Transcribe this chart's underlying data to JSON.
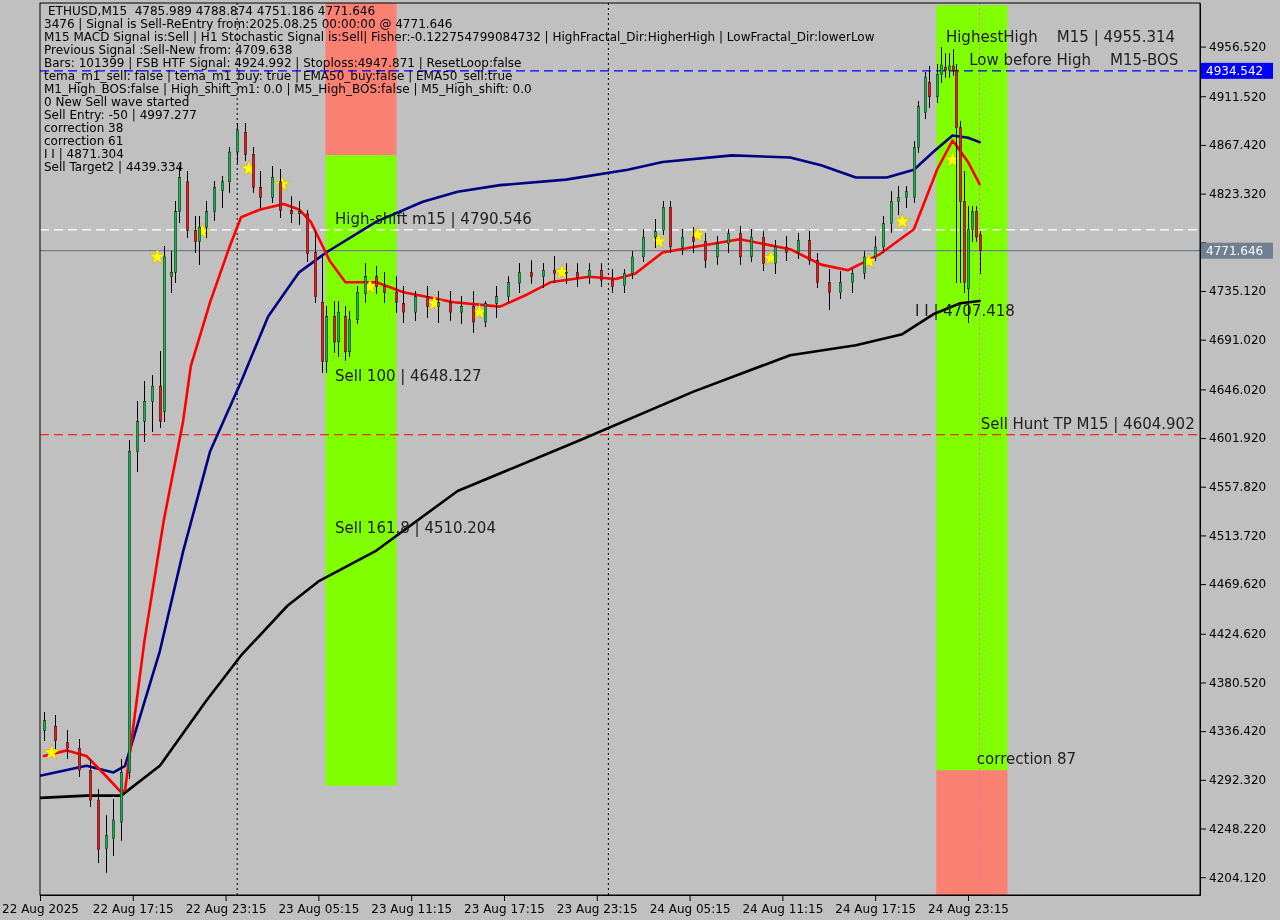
{
  "chart_data": {
    "type": "candlestick",
    "title": "ETHUSD,M15  4785.989 4788.874 4751.186 4771.646",
    "x": [
      "2025-08-22T11:30",
      "2025-08-22T12:15",
      "2025-08-22T13:00",
      "2025-08-22T13:45",
      "2025-08-22T14:30",
      "2025-08-22T15:00",
      "2025-08-22T15:30",
      "2025-08-22T16:00",
      "2025-08-22T16:30",
      "2025-08-22T17:00",
      "2025-08-22T17:30",
      "2025-08-22T18:00",
      "2025-08-22T18:30",
      "2025-08-22T19:00",
      "2025-08-22T19:15",
      "2025-08-22T19:45",
      "2025-08-22T20:00",
      "2025-08-22T20:15",
      "2025-08-22T20:45",
      "2025-08-22T21:15",
      "2025-08-22T21:30",
      "2025-08-22T22:00",
      "2025-08-22T22:30",
      "2025-08-22T23:00",
      "2025-08-22T23:30",
      "2025-08-23T00:00",
      "2025-08-23T00:30",
      "2025-08-23T01:00",
      "2025-08-23T01:30",
      "2025-08-23T02:15",
      "2025-08-23T02:45",
      "2025-08-23T03:30",
      "2025-08-23T04:00",
      "2025-08-23T04:30",
      "2025-08-23T05:00",
      "2025-08-23T05:30",
      "2025-08-23T05:45",
      "2025-08-23T06:15",
      "2025-08-23T06:30",
      "2025-08-23T07:00",
      "2025-08-23T07:15",
      "2025-08-23T07:45",
      "2025-08-23T08:15",
      "2025-08-23T09:00",
      "2025-08-23T09:30",
      "2025-08-23T10:15",
      "2025-08-23T10:45",
      "2025-08-23T11:30",
      "2025-08-23T12:15",
      "2025-08-23T13:00",
      "2025-08-23T13:45",
      "2025-08-23T14:30",
      "2025-08-23T15:15",
      "2025-08-23T16:00",
      "2025-08-23T16:45",
      "2025-08-23T17:30",
      "2025-08-23T18:15",
      "2025-08-23T19:00",
      "2025-08-23T19:45",
      "2025-08-23T20:30",
      "2025-08-23T21:15",
      "2025-08-23T22:00",
      "2025-08-23T22:45",
      "2025-08-23T23:30",
      "2025-08-24T00:15",
      "2025-08-24T01:00",
      "2025-08-24T01:30",
      "2025-08-24T02:15",
      "2025-08-24T03:00",
      "2025-08-24T03:30",
      "2025-08-24T04:00",
      "2025-08-24T04:45",
      "2025-08-24T05:30",
      "2025-08-24T06:15",
      "2025-08-24T07:00",
      "2025-08-24T07:45",
      "2025-08-24T08:30",
      "2025-08-24T09:15",
      "2025-08-24T10:00",
      "2025-08-24T10:45",
      "2025-08-24T11:30",
      "2025-08-24T12:15",
      "2025-08-24T13:00",
      "2025-08-24T13:30",
      "2025-08-24T14:15",
      "2025-08-24T15:00",
      "2025-08-24T15:45",
      "2025-08-24T16:30",
      "2025-08-24T17:15",
      "2025-08-24T17:45",
      "2025-08-24T18:15",
      "2025-08-24T18:45",
      "2025-08-24T19:15",
      "2025-08-24T19:45",
      "2025-08-24T20:00",
      "2025-08-24T20:30",
      "2025-08-24T20:45",
      "2025-08-24T21:15",
      "2025-08-24T21:30",
      "2025-08-24T21:45",
      "2025-08-24T22:00",
      "2025-08-24T22:15",
      "2025-08-24T22:30",
      "2025-08-24T22:45",
      "2025-08-24T23:00",
      "2025-08-24T23:15",
      "2025-08-24T23:30",
      "2025-08-24T23:45",
      "2025-08-25T00:00"
    ],
    "ohlc": [
      [
        4337,
        4353,
        4328,
        4346
      ],
      [
        4341,
        4350,
        4321,
        4328
      ],
      [
        4326,
        4337,
        4312,
        4321
      ],
      [
        4321,
        4328,
        4296,
        4301
      ],
      [
        4301,
        4310,
        4269,
        4274
      ],
      [
        4274,
        4283,
        4218,
        4229
      ],
      [
        4230,
        4260,
        4209,
        4242
      ],
      [
        4239,
        4274,
        4224,
        4256
      ],
      [
        4254,
        4310,
        4238,
        4299
      ],
      [
        4299,
        4599,
        4294,
        4590
      ],
      [
        4590,
        4635,
        4572,
        4617
      ],
      [
        4617,
        4653,
        4599,
        4635
      ],
      [
        4635,
        4658,
        4608,
        4649
      ],
      [
        4649,
        4680,
        4612,
        4617
      ],
      [
        4626,
        4775,
        4617,
        4766
      ],
      [
        4748,
        4770,
        4734,
        4752
      ],
      [
        4752,
        4816,
        4743,
        4807
      ],
      [
        4807,
        4847,
        4798,
        4838
      ],
      [
        4834,
        4843,
        4784,
        4790
      ],
      [
        4790,
        4802,
        4770,
        4780
      ],
      [
        4780,
        4802,
        4760,
        4793
      ],
      [
        4793,
        4816,
        4784,
        4807
      ],
      [
        4807,
        4834,
        4799,
        4829
      ],
      [
        4826,
        4838,
        4811,
        4834
      ],
      [
        4834,
        4865,
        4825,
        4861
      ],
      [
        4861,
        4886,
        4852,
        4881
      ],
      [
        4879,
        4886,
        4854,
        4859
      ],
      [
        4859,
        4865,
        4825,
        4829
      ],
      [
        4829,
        4843,
        4811,
        4820
      ],
      [
        4820,
        4847,
        4816,
        4838
      ],
      [
        4834,
        4845,
        4802,
        4808
      ],
      [
        4808,
        4820,
        4798,
        4805
      ],
      [
        4805,
        4816,
        4796,
        4807
      ],
      [
        4805,
        4808,
        4762,
        4769
      ],
      [
        4770,
        4789,
        4725,
        4730
      ],
      [
        4725,
        4766,
        4662,
        4671
      ],
      [
        4671,
        4721,
        4662,
        4712
      ],
      [
        4712,
        4725,
        4680,
        4689
      ],
      [
        4689,
        4725,
        4676,
        4716
      ],
      [
        4712,
        4721,
        4673,
        4680
      ],
      [
        4680,
        4716,
        4676,
        4709
      ],
      [
        4709,
        4739,
        4706,
        4734
      ],
      [
        4733,
        4760,
        4725,
        4748
      ],
      [
        4748,
        4757,
        4733,
        4739
      ],
      [
        4739,
        4751,
        4725,
        4734
      ],
      [
        4734,
        4748,
        4716,
        4725
      ],
      [
        4724,
        4739,
        4707,
        4716
      ],
      [
        4716,
        4734,
        4709,
        4730
      ],
      [
        4730,
        4739,
        4712,
        4721
      ],
      [
        4721,
        4734,
        4707,
        4725
      ],
      [
        4725,
        4734,
        4709,
        4716
      ],
      [
        4716,
        4730,
        4706,
        4721
      ],
      [
        4721,
        4734,
        4698,
        4707
      ],
      [
        4707,
        4725,
        4703,
        4724
      ],
      [
        4724,
        4739,
        4712,
        4730
      ],
      [
        4730,
        4748,
        4725,
        4743
      ],
      [
        4742,
        4760,
        4734,
        4752
      ],
      [
        4752,
        4762,
        4742,
        4748
      ],
      [
        4748,
        4760,
        4739,
        4754
      ],
      [
        4754,
        4766,
        4743,
        4751
      ],
      [
        4751,
        4760,
        4742,
        4752
      ],
      [
        4752,
        4760,
        4740,
        4747
      ],
      [
        4748,
        4760,
        4742,
        4754
      ],
      [
        4754,
        4760,
        4740,
        4745
      ],
      [
        4745,
        4754,
        4734,
        4739
      ],
      [
        4740,
        4754,
        4734,
        4751
      ],
      [
        4751,
        4770,
        4747,
        4766
      ],
      [
        4766,
        4790,
        4762,
        4784
      ],
      [
        4784,
        4799,
        4775,
        4789
      ],
      [
        4790,
        4816,
        4787,
        4811
      ],
      [
        4811,
        4816,
        4770,
        4775
      ],
      [
        4775,
        4790,
        4769,
        4784
      ],
      [
        4784,
        4792,
        4770,
        4780
      ],
      [
        4780,
        4787,
        4757,
        4763
      ],
      [
        4766,
        4784,
        4760,
        4778
      ],
      [
        4778,
        4790,
        4770,
        4787
      ],
      [
        4787,
        4793,
        4760,
        4766
      ],
      [
        4766,
        4790,
        4762,
        4784
      ],
      [
        4784,
        4789,
        4754,
        4760
      ],
      [
        4760,
        4780,
        4751,
        4775
      ],
      [
        4775,
        4784,
        4763,
        4770
      ],
      [
        4770,
        4787,
        4765,
        4781
      ],
      [
        4781,
        4789,
        4760,
        4763
      ],
      [
        4763,
        4769,
        4739,
        4743
      ],
      [
        4743,
        4754,
        4719,
        4734
      ],
      [
        4734,
        4752,
        4729,
        4743
      ],
      [
        4743,
        4754,
        4734,
        4751
      ],
      [
        4751,
        4770,
        4747,
        4766
      ],
      [
        4766,
        4784,
        4763,
        4775
      ],
      [
        4775,
        4802,
        4770,
        4796
      ],
      [
        4796,
        4825,
        4789,
        4816
      ],
      [
        4816,
        4829,
        4805,
        4820
      ],
      [
        4820,
        4829,
        4811,
        4825
      ],
      [
        4820,
        4870,
        4816,
        4865
      ],
      [
        4865,
        4906,
        4861,
        4902
      ],
      [
        4897,
        4933,
        4892,
        4929
      ],
      [
        4924,
        4938,
        4902,
        4911
      ],
      [
        4911,
        4940,
        4906,
        4931
      ],
      [
        4931,
        4955.314,
        4924,
        4940
      ],
      [
        4938,
        4950,
        4929,
        4935
      ],
      [
        4935,
        4950,
        4929,
        4939
      ],
      [
        4939,
        4953,
        4931,
        4935
      ],
      [
        4935,
        4940,
        4743,
        4883
      ],
      [
        4883,
        4888,
        4743,
        4816
      ],
      [
        4816,
        4843,
        4734,
        4743
      ],
      [
        4737,
        4811,
        4707.418,
        4791
      ],
      [
        4791,
        4811,
        4780,
        4807
      ],
      [
        4807,
        4811,
        4780,
        4784
      ],
      [
        4785.989,
        4788.874,
        4751.186,
        4771.646
      ]
    ],
    "xlim": [
      "2025-08-22T11:15",
      "2025-08-25T14:15"
    ],
    "xticks": [
      {
        "value": "2025-08-22T11:15",
        "label": "22 Aug 2025"
      },
      {
        "value": "2025-08-22T17:15",
        "label": "22 Aug 17:15"
      },
      {
        "value": "2025-08-22T23:15",
        "label": "22 Aug 23:15"
      },
      {
        "value": "2025-08-23T05:15",
        "label": "23 Aug 05:15"
      },
      {
        "value": "2025-08-23T11:15",
        "label": "23 Aug 11:15"
      },
      {
        "value": "2025-08-23T17:15",
        "label": "23 Aug 17:15"
      },
      {
        "value": "2025-08-23T23:15",
        "label": "23 Aug 23:15"
      },
      {
        "value": "2025-08-24T05:15",
        "label": "24 Aug 05:15"
      },
      {
        "value": "2025-08-24T11:15",
        "label": "24 Aug 11:15"
      },
      {
        "value": "2025-08-24T17:15",
        "label": "24 Aug 17:15"
      },
      {
        "value": "2025-08-24T23:15",
        "label": "24 Aug 23:15"
      }
    ],
    "ylim": [
      4188,
      4996
    ],
    "yticks": [
      {
        "value": 4956.52,
        "label": "4956.520"
      },
      {
        "value": 4911.52,
        "label": "4911.520"
      },
      {
        "value": 4867.42,
        "label": "4867.420"
      },
      {
        "value": 4823.32,
        "label": "4823.320"
      },
      {
        "value": 4779.22,
        "label": null
      },
      {
        "value": 4735.12,
        "label": "4735.120"
      },
      {
        "value": 4691.02,
        "label": "4691.020"
      },
      {
        "value": 4646.02,
        "label": "4646.020"
      },
      {
        "value": 4601.92,
        "label": "4601.920"
      },
      {
        "value": 4557.82,
        "label": "4557.820"
      },
      {
        "value": 4513.72,
        "label": "4513.720"
      },
      {
        "value": 4469.62,
        "label": "4469.620"
      },
      {
        "value": 4424.62,
        "label": "4424.620"
      },
      {
        "value": 4380.52,
        "label": "4380.520"
      },
      {
        "value": 4336.42,
        "label": "4336.420"
      },
      {
        "value": 4292.32,
        "label": "4292.320"
      },
      {
        "value": 4248.22,
        "label": "4248.220"
      },
      {
        "value": 4204.12,
        "label": "4204.120"
      }
    ],
    "series": [
      {
        "type": "bar",
        "x": [
          "2025-08-23T08:00"
        ],
        "base": [
          4858
        ],
        "values": [
          138
        ],
        "colors": [
          "#fa8072"
        ]
      },
      {
        "type": "bar",
        "x": [
          "2025-08-23T08:00"
        ],
        "base": [
          4648.127
        ],
        "values": [
          210
        ],
        "colors": [
          "#7fff00"
        ]
      },
      {
        "type": "bar",
        "x": [
          "2025-08-23T08:00"
        ],
        "base": [
          4510.204
        ],
        "values": [
          138
        ],
        "colors": [
          "#7fff00"
        ]
      },
      {
        "type": "bar",
        "x": [
          "2025-08-23T08:00"
        ],
        "base": [
          4287
        ],
        "values": [
          223
        ],
        "colors": [
          "#7fff00"
        ]
      },
      {
        "type": "bar",
        "x": [
          "2025-08-24T23:30"
        ],
        "base": [
          4301
        ],
        "values": [
          693
        ],
        "colors": [
          "#7fff00"
        ]
      },
      {
        "type": "bar",
        "x": [
          "2025-08-24T23:30"
        ],
        "base": [
          4188
        ],
        "values": [
          113
        ],
        "colors": [
          "#fa8072"
        ]
      },
      {
        "type": "line",
        "color": "#000000",
        "x": [
          "2025-08-22T11:15",
          "2025-08-22T14:15",
          "2025-08-22T16:30",
          "2025-08-22T19:00",
          "2025-08-22T22:00",
          "2025-08-23T00:15",
          "2025-08-23T03:15",
          "2025-08-23T05:15",
          "2025-08-23T09:00",
          "2025-08-23T14:15",
          "2025-08-23T22:00",
          "2025-08-24T05:30",
          "2025-08-24T11:45",
          "2025-08-24T16:00",
          "2025-08-24T19:00",
          "2025-08-24T21:00",
          "2025-08-24T22:45",
          "2025-08-25T00:00"
        ],
        "values": [
          4276,
          4278,
          4278,
          4305,
          4364,
          4405,
          4450,
          4472,
          4500,
          4554,
          4599,
          4644,
          4677,
          4686,
          4696,
          4714,
          4724,
          4726
        ]
      },
      {
        "type": "line",
        "color": "#000080",
        "x": [
          "2025-08-22T11:15",
          "2025-08-22T14:15",
          "2025-08-22T16:00",
          "2025-08-22T16:45",
          "2025-08-22T19:00",
          "2025-08-22T20:30",
          "2025-08-22T22:15",
          "2025-08-23T00:15",
          "2025-08-23T02:00",
          "2025-08-23T04:00",
          "2025-08-23T05:45",
          "2025-08-23T09:00",
          "2025-08-23T12:00",
          "2025-08-23T14:15",
          "2025-08-23T17:00",
          "2025-08-23T21:15",
          "2025-08-24T01:15",
          "2025-08-24T03:30",
          "2025-08-24T08:00",
          "2025-08-24T11:45",
          "2025-08-24T13:45",
          "2025-08-24T16:00",
          "2025-08-24T18:00",
          "2025-08-24T19:45",
          "2025-08-24T21:00",
          "2025-08-24T22:15",
          "2025-08-24T23:15",
          "2025-08-25T00:00"
        ],
        "values": [
          4296,
          4305,
          4299,
          4305,
          4409,
          4499,
          4590,
          4653,
          4712,
          4752,
          4770,
          4798,
          4816,
          4825,
          4831,
          4836,
          4845,
          4852,
          4858,
          4856,
          4849,
          4838,
          4838,
          4845,
          4861,
          4876,
          4874,
          4870
        ]
      },
      {
        "type": "line",
        "color": "#ff0000",
        "x": [
          "2025-08-22T11:30",
          "2025-08-22T13:00",
          "2025-08-22T14:15",
          "2025-08-22T15:30",
          "2025-08-22T16:30",
          "2025-08-22T16:45",
          "2025-08-22T18:00",
          "2025-08-22T19:15",
          "2025-08-22T20:30",
          "2025-08-22T21:00",
          "2025-08-22T22:15",
          "2025-08-22T23:30",
          "2025-08-23T00:15",
          "2025-08-23T01:30",
          "2025-08-23T03:00",
          "2025-08-23T04:00",
          "2025-08-23T04:45",
          "2025-08-23T06:00",
          "2025-08-23T07:00",
          "2025-08-23T09:00",
          "2025-08-23T10:45",
          "2025-08-23T14:00",
          "2025-08-23T17:00",
          "2025-08-23T18:45",
          "2025-08-23T20:15",
          "2025-08-23T22:45",
          "2025-08-24T00:30",
          "2025-08-24T01:45",
          "2025-08-24T03:30",
          "2025-08-24T05:30",
          "2025-08-24T08:30",
          "2025-08-24T11:45",
          "2025-08-24T13:45",
          "2025-08-24T15:30",
          "2025-08-24T17:30",
          "2025-08-24T19:45",
          "2025-08-24T21:15",
          "2025-08-24T22:15",
          "2025-08-24T22:30",
          "2025-08-24T23:15",
          "2025-08-25T00:00"
        ],
        "values": [
          4314,
          4319,
          4314,
          4296,
          4281,
          4283,
          4418,
          4527,
          4617,
          4667,
          4725,
          4775,
          4802,
          4809,
          4814,
          4809,
          4798,
          4762,
          4743,
          4743,
          4734,
          4725,
          4721,
          4732,
          4743,
          4748,
          4746,
          4751,
          4770,
          4775,
          4782,
          4773,
          4759,
          4754,
          4768,
          4791,
          4845,
          4871.304,
          4867,
          4852,
          4832
        ]
      },
      {
        "type": "scatter",
        "marker": "star",
        "color": "#ffff00",
        "x": [
          "2025-08-22T12:00",
          "2025-08-22T18:50",
          "2025-08-22T21:45",
          "2025-08-23T00:45",
          "2025-08-23T02:55",
          "2025-08-23T08:35",
          "2025-08-23T12:45",
          "2025-08-23T15:40",
          "2025-08-23T21:00",
          "2025-08-24T03:15",
          "2025-08-24T05:45",
          "2025-08-24T10:30",
          "2025-08-24T16:50",
          "2025-08-24T19:00",
          "2025-08-24T22:15"
        ],
        "values": [
          4317,
          4766,
          4789,
          4846,
          4832,
          4739,
          4724,
          4716,
          4752,
          4780,
          4786,
          4765,
          4762,
          4798,
          4854
        ]
      }
    ],
    "ref_lines": [
      {
        "axis": "y",
        "value": 4934.542,
        "label": "4934.542",
        "color": "#0000ff",
        "line_style": "dashed"
      },
      {
        "axis": "y",
        "value": 4771.646,
        "label": "4771.646",
        "color": "#708090",
        "line_style": "solid"
      },
      {
        "axis": "y",
        "value": 4790.546,
        "color": "#ffffff",
        "line_style": "dashed"
      },
      {
        "axis": "y",
        "value": 4604.902,
        "color": "#ff0000",
        "line_style": "dashed"
      },
      {
        "axis": "x",
        "value": "2025-08-23T00:00",
        "color": "#000000",
        "line_style": "dotted"
      },
      {
        "axis": "x",
        "value": "2025-08-24T00:00",
        "color": "#000000",
        "line_style": "dotted"
      },
      {
        "axis": "x",
        "value": "2025-08-25T00:00",
        "color": "#ff69b4",
        "line_style": "dotted"
      }
    ],
    "annotations": [
      "3476 | Signal is Sell-ReEntry from:2025.08.25 00:00:00 @ 4771.646",
      "M15 MACD Signal is:Sell | H1 Stochastic Signal is:Sell| Fisher:-0.122754799084732 | HighFractal_Dir:HigherHigh | LowFractal_Dir:lowerLow",
      "Previous Signal :Sell-New from: 4709.638",
      "Bars: 101399 | FSB HTF Signal: 4924.992 | Stoploss:4947.871 | ResetLoop:false",
      "tema_m1_sell: false | tema_m1_buy: true | EMA50_buy:false | EMA50_sell:true",
      "M1_High_BOS:false | High_shift_m1: 0.0 | M5_High_BOS:false | M5_High_shift: 0.0",
      "0 New Sell wave started",
      "Sell Entry: -50 | 4997.277",
      "correction 38",
      "correction 61",
      "I I | 4871.304",
      "Sell Target2 | 4439.334",
      {
        "text": "High-shift m15 | 4790.546",
        "x": "2025-08-23T06:00",
        "y": 4790.546
      },
      {
        "text": "Sell 100 | 4648.127",
        "x": "2025-08-23T06:00",
        "y": 4648.127
      },
      {
        "text": "Sell 161.8 | 4510.204",
        "x": "2025-08-23T06:00",
        "y": 4510.204
      },
      {
        "text": "HighestHigh    M15 | 4955.314",
        "x": "2025-08-24T21:30",
        "y": 4955.314
      },
      {
        "text": "Low before High    M15-BOS",
        "x": "2025-08-24T23:00",
        "y": 4934.542
      },
      {
        "text": "I I | 4707.418",
        "x": "2025-08-24T19:30",
        "y": 4707.418
      },
      {
        "text": "correction 87",
        "x": "2025-08-24T23:30",
        "y": 4301
      },
      {
        "text": "Sell Hunt TP M15 | 4604.902",
        "x": "2025-08-24T23:45",
        "y": 4604.902
      }
    ]
  }
}
